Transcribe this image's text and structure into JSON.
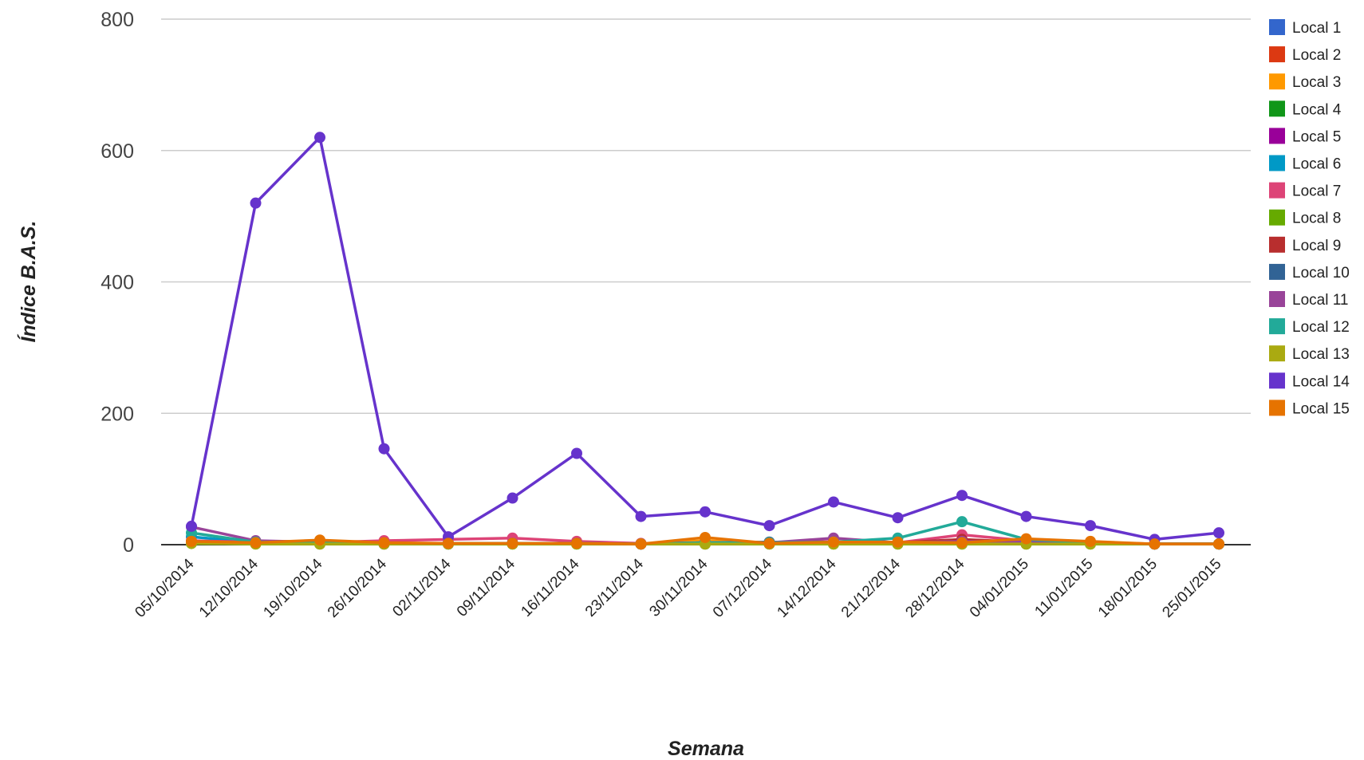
{
  "chart_data": {
    "type": "line",
    "title": "",
    "xlabel": "Semana",
    "ylabel": "Índice B.A.S.",
    "ylim": [
      0,
      800
    ],
    "yticks": [
      0,
      200,
      400,
      600,
      800
    ],
    "grid": true,
    "legend_position": "right",
    "x": [
      "05/10/2014",
      "12/10/2014",
      "19/10/2014",
      "26/10/2014",
      "02/11/2014",
      "09/11/2014",
      "16/11/2014",
      "23/11/2014",
      "30/11/2014",
      "07/12/2014",
      "14/12/2014",
      "21/12/2014",
      "28/12/2014",
      "04/01/2015",
      "11/01/2015",
      "18/01/2015",
      "25/01/2015"
    ],
    "series": [
      {
        "name": "Local 1",
        "color": "#3366cc",
        "values": [
          5,
          3,
          2,
          2,
          2,
          2,
          2,
          1,
          2,
          2,
          2,
          2,
          3,
          2,
          2,
          1,
          1
        ]
      },
      {
        "name": "Local 2",
        "color": "#dc3912",
        "values": [
          3,
          2,
          2,
          2,
          2,
          2,
          2,
          1,
          2,
          2,
          2,
          3,
          4,
          2,
          2,
          1,
          1
        ]
      },
      {
        "name": "Local 3",
        "color": "#ff9900",
        "values": [
          4,
          2,
          3,
          2,
          2,
          2,
          2,
          1,
          6,
          2,
          3,
          2,
          3,
          4,
          3,
          1,
          1
        ]
      },
      {
        "name": "Local 4",
        "color": "#109618",
        "values": [
          2,
          2,
          1,
          1,
          1,
          1,
          1,
          1,
          1,
          1,
          1,
          1,
          1,
          1,
          1,
          1,
          1
        ]
      },
      {
        "name": "Local 5",
        "color": "#990099",
        "values": [
          3,
          2,
          2,
          1,
          1,
          2,
          2,
          1,
          2,
          2,
          3,
          2,
          3,
          2,
          2,
          1,
          1
        ]
      },
      {
        "name": "Local 6",
        "color": "#0099c6",
        "values": [
          12,
          3,
          2,
          2,
          2,
          2,
          2,
          1,
          2,
          2,
          2,
          2,
          2,
          2,
          2,
          1,
          1
        ]
      },
      {
        "name": "Local 7",
        "color": "#dd4477",
        "values": [
          6,
          4,
          3,
          6,
          8,
          10,
          5,
          2,
          3,
          3,
          5,
          3,
          15,
          6,
          4,
          1,
          1
        ]
      },
      {
        "name": "Local 8",
        "color": "#66aa00",
        "values": [
          2,
          1,
          1,
          1,
          1,
          1,
          1,
          1,
          1,
          1,
          1,
          1,
          1,
          1,
          1,
          1,
          1
        ]
      },
      {
        "name": "Local 9",
        "color": "#b82e2e",
        "values": [
          4,
          3,
          3,
          2,
          2,
          2,
          2,
          1,
          2,
          2,
          4,
          3,
          8,
          4,
          3,
          1,
          1
        ]
      },
      {
        "name": "Local 10",
        "color": "#316395",
        "values": [
          3,
          2,
          2,
          2,
          2,
          2,
          2,
          1,
          3,
          4,
          4,
          3,
          4,
          3,
          2,
          1,
          1
        ]
      },
      {
        "name": "Local 11",
        "color": "#994499",
        "values": [
          27,
          6,
          4,
          2,
          2,
          2,
          2,
          1,
          3,
          3,
          10,
          3,
          5,
          4,
          2,
          1,
          1
        ]
      },
      {
        "name": "Local 12",
        "color": "#22aa99",
        "values": [
          18,
          4,
          3,
          2,
          2,
          2,
          2,
          1,
          3,
          3,
          4,
          10,
          35,
          8,
          3,
          1,
          1
        ]
      },
      {
        "name": "Local 13",
        "color": "#aaaa11",
        "values": [
          2,
          1,
          1,
          1,
          1,
          1,
          1,
          1,
          1,
          1,
          1,
          1,
          1,
          1,
          1,
          1,
          1
        ]
      },
      {
        "name": "Local 14",
        "color": "#6633cc",
        "values": [
          28,
          520,
          620,
          146,
          12,
          71,
          139,
          43,
          50,
          29,
          65,
          41,
          75,
          43,
          29,
          8,
          18
        ]
      },
      {
        "name": "Local 15",
        "color": "#e67300",
        "values": [
          5,
          3,
          7,
          3,
          2,
          2,
          2,
          1,
          11,
          2,
          4,
          4,
          3,
          9,
          5,
          1,
          1
        ]
      }
    ]
  }
}
